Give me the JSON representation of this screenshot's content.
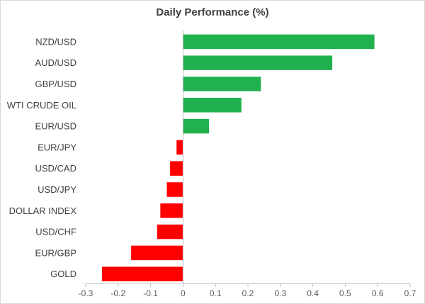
{
  "chart_data": {
    "type": "bar",
    "orientation": "horizontal",
    "title": "Daily Performance (%)",
    "xlabel": "",
    "ylabel": "",
    "categories": [
      "NZD/USD",
      "AUD/USD",
      "GBP/USD",
      "WTI CRUDE OIL",
      "EUR/USD",
      "EUR/JPY",
      "USD/CAD",
      "USD/JPY",
      "DOLLAR INDEX",
      "USD/CHF",
      "EUR/GBP",
      "GOLD"
    ],
    "values": [
      0.59,
      0.46,
      0.24,
      0.18,
      0.08,
      -0.02,
      -0.04,
      -0.05,
      -0.07,
      -0.08,
      -0.16,
      -0.25
    ],
    "xlim": [
      -0.3,
      0.7
    ],
    "xticks": [
      "-0.3",
      "-0.2",
      "-0.1",
      "0",
      "0.1",
      "0.2",
      "0.3",
      "0.4",
      "0.5",
      "0.6",
      "0.7"
    ],
    "grid": false,
    "legend": "none",
    "colors": {
      "positive": "#21b14f",
      "negative": "#ff0000",
      "axis": "#bfbfbf",
      "text": "#404040"
    }
  }
}
